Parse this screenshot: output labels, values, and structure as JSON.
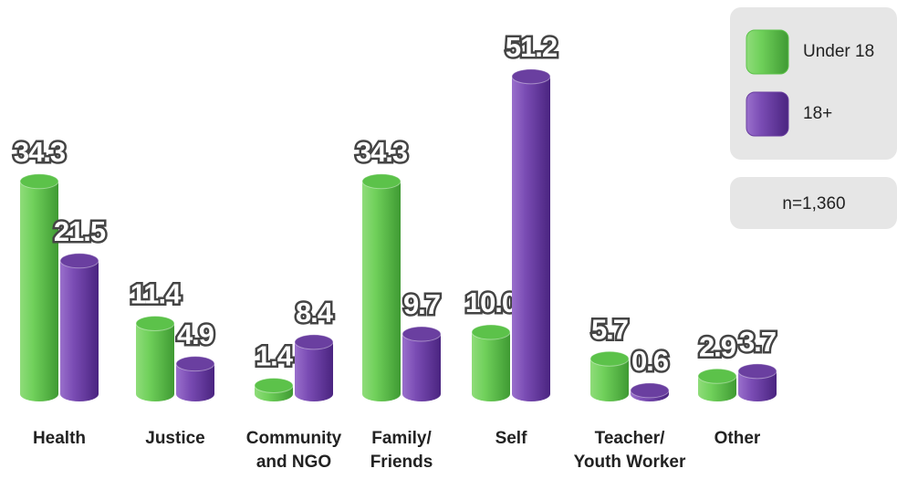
{
  "chart_data": {
    "type": "bar",
    "categories": [
      "Health",
      "Justice",
      "Community and NGO",
      "Family/ Friends",
      "Self",
      "Teacher/ Youth Worker",
      "Other"
    ],
    "series": [
      {
        "name": "Under 18",
        "color": "#5cc24a",
        "values": [
          34.3,
          11.4,
          1.4,
          34.3,
          10.0,
          5.7,
          2.9
        ],
        "value_labels": [
          "34.3",
          "11.4",
          "1.4",
          "34.3",
          "10.0",
          "5.7",
          "2.9"
        ]
      },
      {
        "name": "18+",
        "color": "#6a3fa0",
        "values": [
          21.5,
          4.9,
          8.4,
          9.7,
          51.2,
          0.6,
          3.7
        ],
        "value_labels": [
          "21.5",
          "4.9",
          "8.4",
          "9.7",
          "51.2",
          "0.6",
          "3.7"
        ]
      }
    ],
    "note": "n=1,360",
    "legend": "top-right"
  }
}
